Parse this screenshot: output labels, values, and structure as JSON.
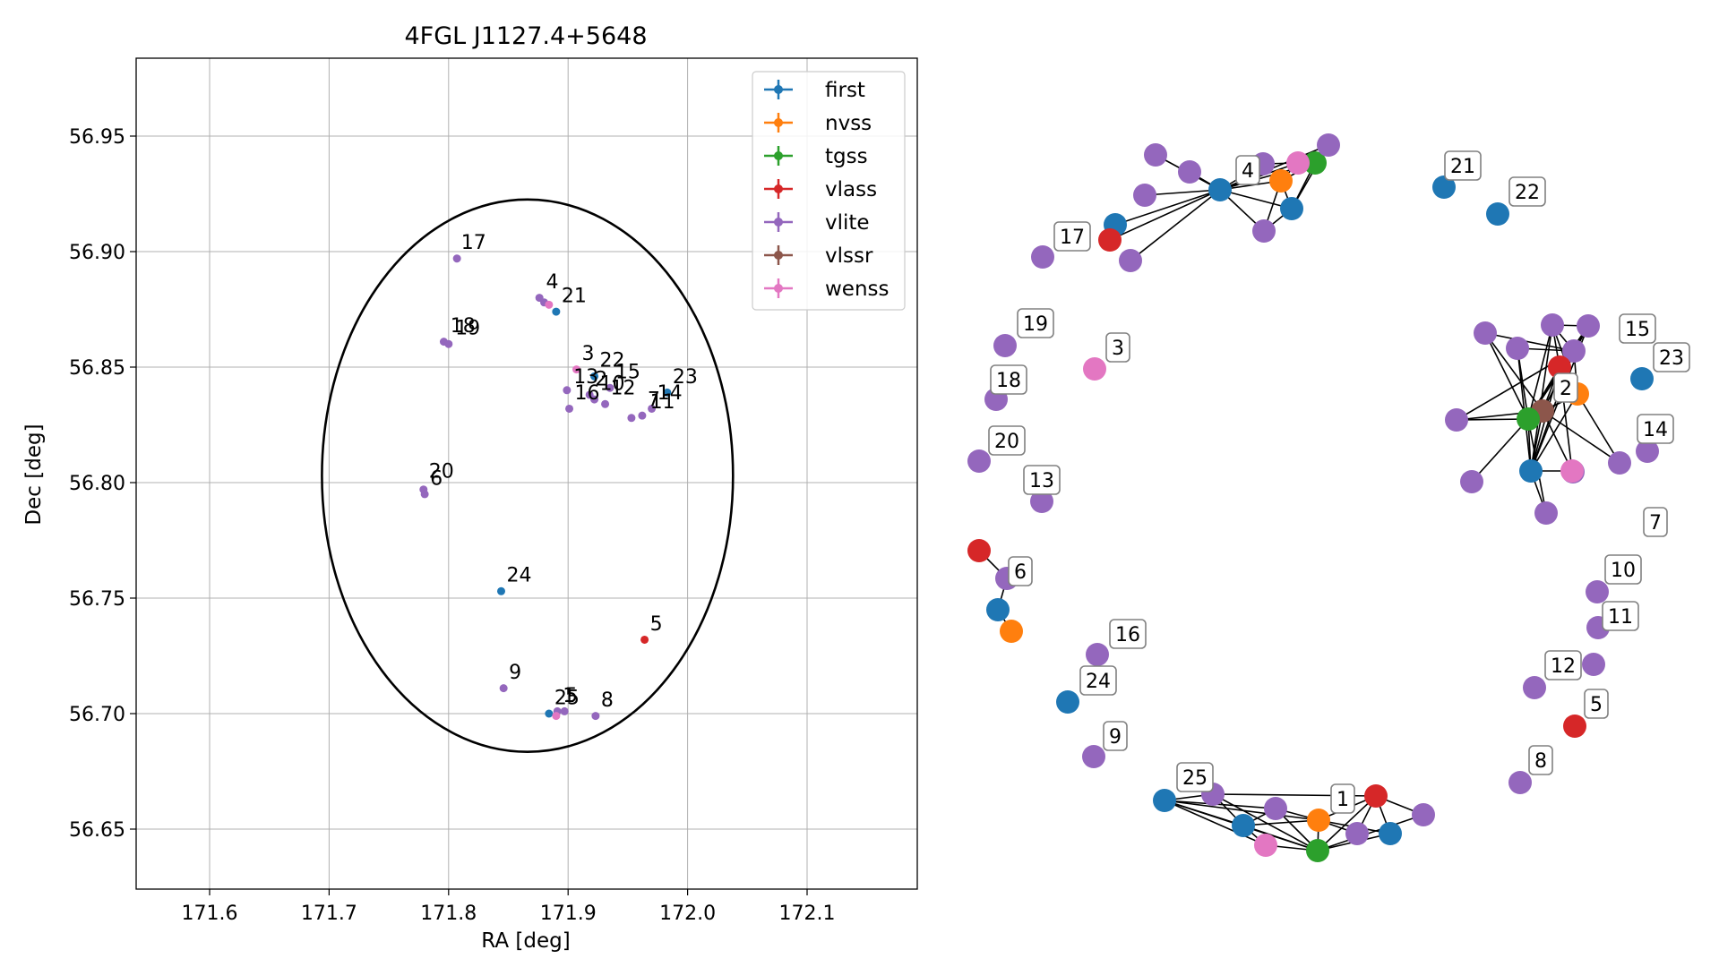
{
  "chart_data": [
    {
      "type": "scatter",
      "title": "4FGL J1127.4+5648",
      "xlabel": "RA [deg]",
      "ylabel": "Dec [deg]",
      "xlim": [
        171.54,
        172.19
      ],
      "ylim": [
        56.625,
        56.98
      ],
      "x_ticks": [
        "171.6",
        "171.7",
        "171.8",
        "171.9",
        "172.0",
        "172.1"
      ],
      "y_ticks": [
        "56.65",
        "56.70",
        "56.75",
        "56.80",
        "56.85",
        "56.90",
        "56.95"
      ],
      "grid": true,
      "legend_position": "top-right",
      "colors": {
        "first": "#1f77b4",
        "nvss": "#ff7f0e",
        "tgss": "#2ca02c",
        "vlass": "#d62728",
        "vlite": "#9467bd",
        "vlssr": "#8c564b",
        "wenss": "#e377c2"
      },
      "legend": [
        "first",
        "nvss",
        "tgss",
        "vlass",
        "vlite",
        "vlssr",
        "wenss"
      ],
      "ellipse": {
        "center": [
          171.866,
          56.803
        ],
        "semi_axis_ra": 0.172,
        "semi_axis_dec": 0.1195
      },
      "points": [
        {
          "survey": "vlite",
          "ra": 171.807,
          "dec": 56.897
        },
        {
          "survey": "vlite",
          "ra": 171.876,
          "dec": 56.88
        },
        {
          "survey": "vlite",
          "ra": 171.88,
          "dec": 56.878
        },
        {
          "survey": "wenss",
          "ra": 171.884,
          "dec": 56.877
        },
        {
          "survey": "first",
          "ra": 171.89,
          "dec": 56.874
        },
        {
          "survey": "vlite",
          "ra": 171.796,
          "dec": 56.861
        },
        {
          "survey": "vlite",
          "ra": 171.8,
          "dec": 56.86
        },
        {
          "survey": "wenss",
          "ra": 171.907,
          "dec": 56.849
        },
        {
          "survey": "first",
          "ra": 171.922,
          "dec": 56.846
        },
        {
          "survey": "vlite",
          "ra": 171.899,
          "dec": 56.84
        },
        {
          "survey": "vlite",
          "ra": 171.918,
          "dec": 56.838
        },
        {
          "survey": "vlite",
          "ra": 171.922,
          "dec": 56.836
        },
        {
          "survey": "vlite",
          "ra": 171.935,
          "dec": 56.841
        },
        {
          "survey": "vlite",
          "ra": 171.931,
          "dec": 56.834
        },
        {
          "survey": "vlite",
          "ra": 171.901,
          "dec": 56.832
        },
        {
          "survey": "first",
          "ra": 171.983,
          "dec": 56.839
        },
        {
          "survey": "vlite",
          "ra": 171.97,
          "dec": 56.832
        },
        {
          "survey": "vlite",
          "ra": 171.962,
          "dec": 56.829
        },
        {
          "survey": "vlite",
          "ra": 171.953,
          "dec": 56.828
        },
        {
          "survey": "vlite",
          "ra": 171.779,
          "dec": 56.797
        },
        {
          "survey": "vlite",
          "ra": 171.78,
          "dec": 56.795
        },
        {
          "survey": "first",
          "ra": 171.844,
          "dec": 56.753
        },
        {
          "survey": "vlass",
          "ra": 171.964,
          "dec": 56.732
        },
        {
          "survey": "vlite",
          "ra": 171.846,
          "dec": 56.711
        },
        {
          "survey": "first",
          "ra": 171.884,
          "dec": 56.7
        },
        {
          "survey": "vlite",
          "ra": 171.891,
          "dec": 56.701
        },
        {
          "survey": "wenss",
          "ra": 171.89,
          "dec": 56.699
        },
        {
          "survey": "vlite",
          "ra": 171.897,
          "dec": 56.701
        },
        {
          "survey": "vlite",
          "ra": 171.923,
          "dec": 56.699
        }
      ],
      "labels": [
        {
          "text": "17",
          "ra": 171.806,
          "dec": 56.898
        },
        {
          "text": "4",
          "ra": 171.877,
          "dec": 56.881
        },
        {
          "text": "21",
          "ra": 171.89,
          "dec": 56.875
        },
        {
          "text": "18",
          "ra": 171.797,
          "dec": 56.862
        },
        {
          "text": "19",
          "ra": 171.801,
          "dec": 56.861
        },
        {
          "text": "3",
          "ra": 171.907,
          "dec": 56.85
        },
        {
          "text": "22",
          "ra": 171.922,
          "dec": 56.847
        },
        {
          "text": "15",
          "ra": 171.935,
          "dec": 56.842
        },
        {
          "text": "13",
          "ra": 171.9,
          "dec": 56.84
        },
        {
          "text": "2",
          "ra": 171.918,
          "dec": 56.839
        },
        {
          "text": "10",
          "ra": 171.922,
          "dec": 56.837
        },
        {
          "text": "16",
          "ra": 171.901,
          "dec": 56.833
        },
        {
          "text": "12",
          "ra": 171.931,
          "dec": 56.835
        },
        {
          "text": "23",
          "ra": 171.983,
          "dec": 56.84
        },
        {
          "text": "14",
          "ra": 171.97,
          "dec": 56.833
        },
        {
          "text": "7",
          "ra": 171.962,
          "dec": 56.83
        },
        {
          "text": "11",
          "ra": 171.964,
          "dec": 56.829
        },
        {
          "text": "20",
          "ra": 171.779,
          "dec": 56.799
        },
        {
          "text": "6",
          "ra": 171.78,
          "dec": 56.796
        },
        {
          "text": "24",
          "ra": 171.844,
          "dec": 56.754
        },
        {
          "text": "5",
          "ra": 171.964,
          "dec": 56.733
        },
        {
          "text": "9",
          "ra": 171.846,
          "dec": 56.712
        },
        {
          "text": "25",
          "ra": 171.884,
          "dec": 56.701
        },
        {
          "text": "1",
          "ra": 171.891,
          "dec": 56.702
        },
        {
          "text": "5",
          "ra": 171.893,
          "dec": 56.702
        },
        {
          "text": "8",
          "ra": 171.923,
          "dec": 56.7
        }
      ]
    },
    {
      "type": "network",
      "nodes_labeled": [
        "21",
        "22",
        "4",
        "17",
        "19",
        "3",
        "18",
        "20",
        "13",
        "6",
        "16",
        "24",
        "9",
        "25",
        "1",
        "15",
        "23",
        "2",
        "14",
        "7",
        "10",
        "11",
        "12",
        "5",
        "8"
      ]
    }
  ]
}
